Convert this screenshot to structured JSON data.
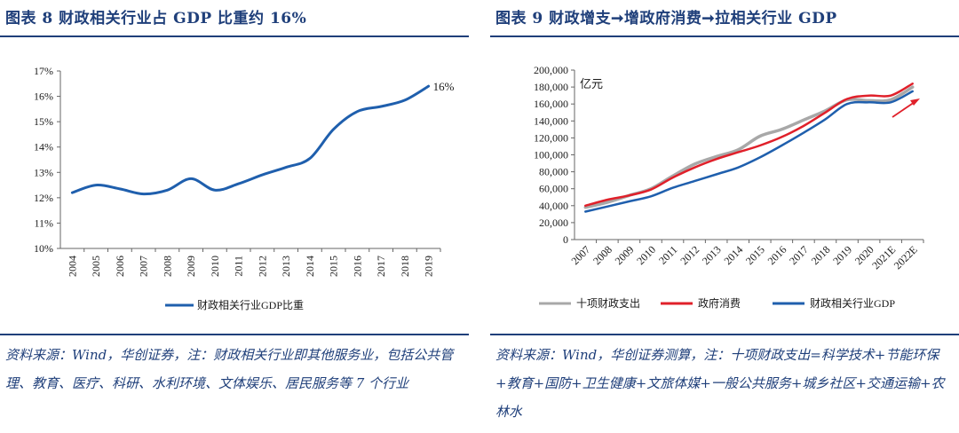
{
  "left": {
    "header": "图表  8    财政相关行业占 GDP  比重约 16%",
    "note": "资料来源：Wind，华创证券，注：财政相关行业即其他服务业，包括公共管理、教育、医疗、科研、水利环境、文体娱乐、居民服务等 7 个行业"
  },
  "right": {
    "header": "图表  9    财政增支➞增政府消费➞拉相关行业 GDP",
    "note": "资料来源：Wind，华创证券测算，注：十项财政支出=科学技术+节能环保+教育+国防+卫生健康+文旅体媒+一般公共服务+城乡社区+交通运输+农林水"
  },
  "colors": {
    "blue": "#1f5fad",
    "red": "#e0202a",
    "gray": "#a8a8a8",
    "header": "#1f3f7a"
  },
  "chart_data": [
    {
      "type": "line",
      "title": "财政相关行业占GDP比重约16%",
      "x": [
        "2004",
        "2005",
        "2006",
        "2007",
        "2008",
        "2009",
        "2010",
        "2011",
        "2012",
        "2013",
        "2014",
        "2015",
        "2016",
        "2017",
        "2018",
        "2019"
      ],
      "series": [
        {
          "name": "财政相关行业GDP比重",
          "values": [
            12.2,
            12.5,
            12.35,
            12.15,
            12.3,
            12.75,
            12.3,
            12.55,
            12.9,
            13.2,
            13.55,
            14.7,
            15.4,
            15.6,
            15.85,
            16.4
          ]
        }
      ],
      "yticks": [
        "10%",
        "11%",
        "12%",
        "13%",
        "14%",
        "15%",
        "16%",
        "17%"
      ],
      "ylim": [
        10,
        17
      ],
      "annotation": "16%",
      "legend_position": "bottom"
    },
    {
      "type": "line",
      "title": "财政增支➞增政府消费➞拉相关行业GDP",
      "ylabel": "亿元",
      "x": [
        "2007",
        "2008",
        "2009",
        "2010",
        "2011",
        "2012",
        "2013",
        "2014",
        "2015",
        "2016",
        "2017",
        "2018",
        "2019",
        "2020",
        "2021E",
        "2022E"
      ],
      "yticks": [
        "0",
        "20,000",
        "40,000",
        "60,000",
        "80,000",
        "100,000",
        "120,000",
        "140,000",
        "160,000",
        "180,000",
        "200,000"
      ],
      "ylim": [
        0,
        200000
      ],
      "series": [
        {
          "name": "十项财政支出",
          "values": [
            38000,
            44000,
            52000,
            60000,
            75000,
            89000,
            98000,
            106000,
            122000,
            130000,
            141000,
            152000,
            165000,
            164000,
            165000,
            180000
          ]
        },
        {
          "name": "政府消费",
          "values": [
            40000,
            47000,
            52000,
            59000,
            73000,
            85000,
            95000,
            103000,
            111000,
            121000,
            134000,
            150000,
            166000,
            170000,
            170000,
            184000
          ]
        },
        {
          "name": "财政相关行业GDP",
          "values": [
            33000,
            39000,
            45000,
            51000,
            61000,
            69000,
            77000,
            85000,
            97000,
            111000,
            126000,
            142000,
            160000,
            162000,
            162000,
            175000
          ]
        }
      ],
      "legend_position": "bottom"
    }
  ]
}
